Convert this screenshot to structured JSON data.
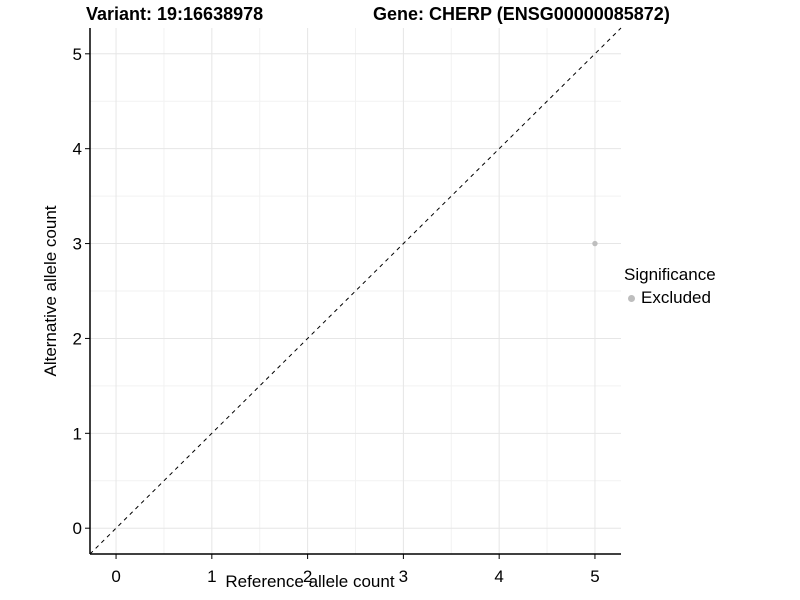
{
  "header": {
    "variant_title": "Variant: 19:16638978",
    "gene_title": "Gene: CHERP (ENSG00000085872)"
  },
  "chart_data": {
    "type": "scatter",
    "title": "Variant: 19:16638978   Gene: CHERP (ENSG00000085872)",
    "xlabel": "Reference allele count",
    "ylabel": "Alternative allele count",
    "xlim": [
      -0.272,
      5.272
    ],
    "ylim": [
      -0.272,
      5.272
    ],
    "x_ticks": [
      0,
      1,
      2,
      3,
      4,
      5
    ],
    "y_ticks": [
      0,
      1,
      2,
      3,
      4,
      5
    ],
    "x_minor_ticks": [
      0.5,
      1.5,
      2.5,
      3.5,
      4.5
    ],
    "y_minor_ticks": [
      0.5,
      1.5,
      2.5,
      3.5,
      4.5
    ],
    "grid": true,
    "points": [
      {
        "x": 5,
        "y": 3,
        "series": "Excluded"
      }
    ],
    "identity_line": {
      "style": "dashed",
      "slope": 1,
      "intercept": 0
    },
    "legend": {
      "position": "right",
      "title": "Significance",
      "items": [
        {
          "label": "Excluded",
          "color": "#bebebe"
        }
      ]
    },
    "style": {
      "background": "#ffffff",
      "grid_major_color": "#e6e6e6",
      "grid_minor_color": "#f2f2f2",
      "axis_color": "#000000",
      "tick_label_color": "#000000",
      "dashed_line_color": "#000000",
      "point_color": "#bebebe",
      "point_radius": 2.7
    }
  }
}
